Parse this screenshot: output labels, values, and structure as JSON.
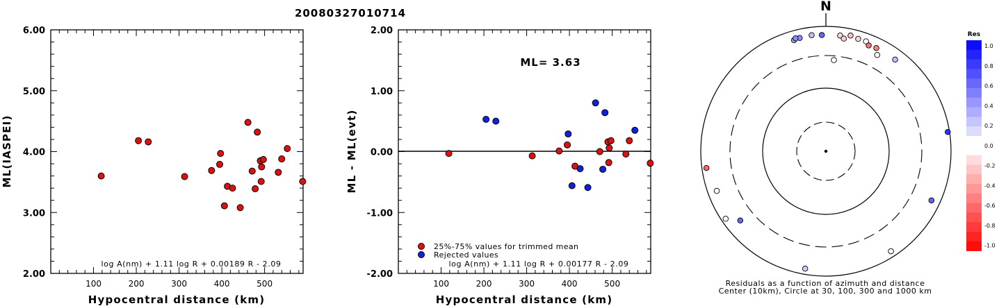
{
  "event_id": "20080327010714",
  "panel1": {
    "ylabel": "ML(IASPEI)",
    "xlabel": "Hypocentral distance (km)",
    "formula": "log A(nm) + 1.11 log R + 0.00189 R - 2.09",
    "yticks": [
      "2.00",
      "3.00",
      "4.00",
      "5.00",
      "6.00"
    ],
    "xticks": [
      "100",
      "200",
      "300",
      "400",
      "500"
    ]
  },
  "panel2": {
    "ylabel": "ML - ML(evt)",
    "xlabel": "Hypocentral distance (km)",
    "formula": "log A(nm) + 1.11 log R + 0.00177 R - 2.09",
    "ml_text": "ML= 3.63",
    "legend_used": "25%-75% values for trimmed mean",
    "legend_rejected": "Rejected values",
    "yticks": [
      "-2.00",
      "-1.00",
      "0.00",
      "1.00",
      "2.00"
    ],
    "xticks": [
      "100",
      "200",
      "300",
      "400",
      "500"
    ]
  },
  "panel3": {
    "north_label": "N",
    "caption_line1": "Residuals as a function of azimuth and distance",
    "caption_line2": "Center (10km), Circle at 30, 100, 300 and 1000 km",
    "colorbar_title": "Res",
    "colorbar_ticks": [
      "1.0",
      "0.8",
      "0.6",
      "0.4",
      "0.2",
      "0.0",
      "-0.2",
      "-0.4",
      "-0.6",
      "-0.8",
      "-1.0"
    ]
  },
  "colors": {
    "used": "#dd1111",
    "rejected": "#1122dd",
    "positive": "#0022ee",
    "negative": "#ee1111"
  },
  "chart_data": [
    {
      "type": "scatter",
      "title": "20080327010714",
      "xlabel": "Hypocentral distance (km)",
      "ylabel": "ML(IASPEI)",
      "xlim": [
        0,
        590
      ],
      "ylim": [
        2,
        6
      ],
      "points": [
        {
          "x": 118,
          "y": 3.6
        },
        {
          "x": 205,
          "y": 4.18
        },
        {
          "x": 228,
          "y": 4.16
        },
        {
          "x": 313,
          "y": 3.59
        },
        {
          "x": 376,
          "y": 3.69
        },
        {
          "x": 395,
          "y": 3.79
        },
        {
          "x": 397,
          "y": 3.97
        },
        {
          "x": 406,
          "y": 3.11
        },
        {
          "x": 413,
          "y": 3.43
        },
        {
          "x": 425,
          "y": 3.4
        },
        {
          "x": 443,
          "y": 3.08
        },
        {
          "x": 461,
          "y": 4.48
        },
        {
          "x": 471,
          "y": 3.68
        },
        {
          "x": 478,
          "y": 3.39
        },
        {
          "x": 483,
          "y": 4.32
        },
        {
          "x": 490,
          "y": 3.85
        },
        {
          "x": 492,
          "y": 3.51
        },
        {
          "x": 493,
          "y": 3.75
        },
        {
          "x": 497,
          "y": 3.87
        },
        {
          "x": 532,
          "y": 3.66
        },
        {
          "x": 540,
          "y": 3.88
        },
        {
          "x": 553,
          "y": 4.05
        },
        {
          "x": 589,
          "y": 3.51
        }
      ]
    },
    {
      "type": "scatter",
      "xlabel": "Hypocentral distance (km)",
      "ylabel": "ML - ML(evt)",
      "xlim": [
        0,
        590
      ],
      "ylim": [
        -2,
        2
      ],
      "series": [
        {
          "name": "25%-75% values for trimmed mean",
          "points": [
            {
              "x": 118,
              "y": -0.03
            },
            {
              "x": 313,
              "y": -0.07
            },
            {
              "x": 376,
              "y": 0.01
            },
            {
              "x": 395,
              "y": 0.11
            },
            {
              "x": 413,
              "y": -0.24
            },
            {
              "x": 471,
              "y": 0.0
            },
            {
              "x": 490,
              "y": 0.16
            },
            {
              "x": 492,
              "y": -0.18
            },
            {
              "x": 493,
              "y": 0.06
            },
            {
              "x": 497,
              "y": 0.18
            },
            {
              "x": 532,
              "y": -0.04
            },
            {
              "x": 540,
              "y": 0.18
            },
            {
              "x": 589,
              "y": -0.19
            }
          ]
        },
        {
          "name": "Rejected values",
          "points": [
            {
              "x": 205,
              "y": 0.53
            },
            {
              "x": 228,
              "y": 0.5
            },
            {
              "x": 397,
              "y": 0.29
            },
            {
              "x": 406,
              "y": -0.56
            },
            {
              "x": 425,
              "y": -0.28
            },
            {
              "x": 443,
              "y": -0.59
            },
            {
              "x": 461,
              "y": 0.8
            },
            {
              "x": 478,
              "y": -0.29
            },
            {
              "x": 483,
              "y": 0.64
            },
            {
              "x": 553,
              "y": 0.35
            }
          ]
        }
      ]
    },
    {
      "type": "scatter",
      "note_type": "polar",
      "points": [
        {
          "az": 344,
          "d": 680,
          "res": 0.35
        },
        {
          "az": 347,
          "d": 700,
          "res": 0.45
        },
        {
          "az": 345,
          "d": 720,
          "res": 0.45
        },
        {
          "az": 353,
          "d": 720,
          "res": 0.25
        },
        {
          "az": 358,
          "d": 700,
          "res": 0.6
        },
        {
          "az": 7,
          "d": 710,
          "res": -0.15
        },
        {
          "az": 12,
          "d": 760,
          "res": -0.25
        },
        {
          "az": 9,
          "d": 640,
          "res": -0.2
        },
        {
          "az": 16,
          "d": 720,
          "res": -0.15
        },
        {
          "az": 20,
          "d": 720,
          "res": 0.05
        },
        {
          "az": 22,
          "d": 640,
          "res": -0.55
        },
        {
          "az": 26,
          "d": 660,
          "res": -0.5
        },
        {
          "az": 28,
          "d": 520,
          "res": 0.05
        },
        {
          "az": 37,
          "d": 660,
          "res": 0.25
        },
        {
          "az": 5,
          "d": 260,
          "res": 0.05
        },
        {
          "az": 81,
          "d": 930,
          "res": 0.8
        },
        {
          "az": 115,
          "d": 700,
          "res": 0.6
        },
        {
          "az": 147,
          "d": 790,
          "res": 0.0
        },
        {
          "az": 190,
          "d": 790,
          "res": 0.2
        },
        {
          "az": 231,
          "d": 540,
          "res": 0.6
        },
        {
          "az": 236,
          "d": 840,
          "res": 0.0
        },
        {
          "az": 250,
          "d": 690,
          "res": 0.0
        },
        {
          "az": 262,
          "d": 830,
          "res": -0.6
        }
      ]
    }
  ]
}
